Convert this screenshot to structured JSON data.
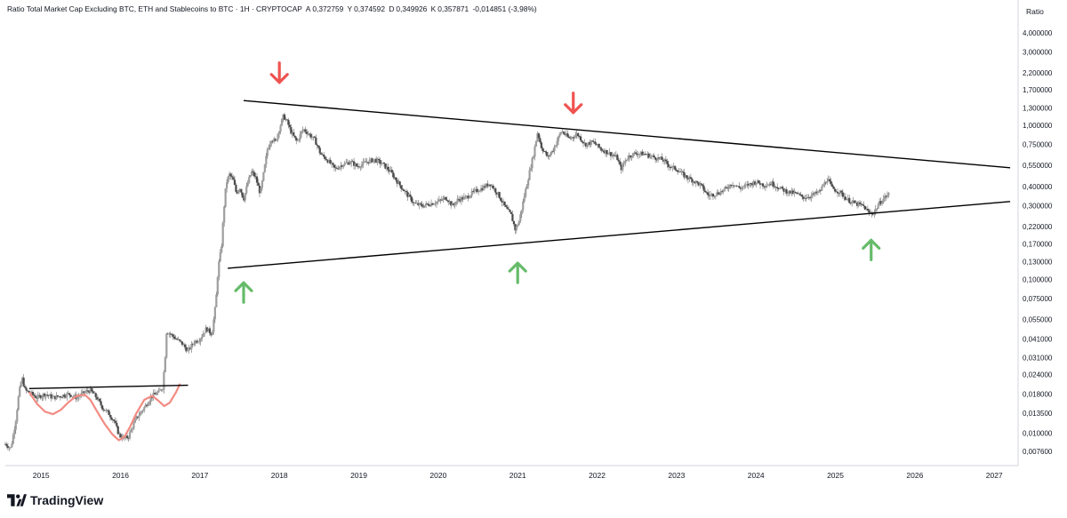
{
  "header": {
    "title": "Ratio Total Market Cap Excluding BTC, ETH and Stablecoins to BTC · 1H · CRYPTOCAP",
    "open_label": "A",
    "open": "0,372759",
    "high_label": "Y",
    "high": "0,374592",
    "low_label": "D",
    "low": "0,349926",
    "close_label": "K",
    "close": "0,357871",
    "change": "-0,014851 (-3,98%)"
  },
  "scale_label": "Ratio",
  "branding": {
    "text": "TradingView",
    "icon": "tradingview-logo"
  },
  "colors": {
    "up": "#26a69a",
    "down": "#ef5350",
    "candle": "#555555",
    "trendline": "#000000",
    "arrow_down": "#ef5350",
    "arrow_up": "#66bb6a",
    "pattern_curve": "#f28b82"
  },
  "chart_data": {
    "type": "candlestick",
    "title": "Ratio Total Market Cap Excluding BTC, ETH and Stablecoins to BTC",
    "y_scale": "log",
    "ylim": [
      0.0065,
      5.0
    ],
    "xlim": [
      2014.55,
      2027.3
    ],
    "y_ticks": [
      "4,000000",
      "3,000000",
      "2,200000",
      "1,700000",
      "1,300000",
      "1,000000",
      "0,750000",
      "0,550000",
      "0,400000",
      "0,300000",
      "0,220000",
      "0,170000",
      "0,130000",
      "0,100000",
      "0,075000",
      "0,055000",
      "0,041000",
      "0,031000",
      "0,024000",
      "0,018000",
      "0,013500",
      "0,010000",
      "0,007600"
    ],
    "x_ticks": [
      "2015",
      "2016",
      "2017",
      "2018",
      "2019",
      "2020",
      "2021",
      "2022",
      "2023",
      "2024",
      "2025",
      "2026",
      "2027"
    ],
    "series": [
      {
        "kind": "price_path",
        "points": [
          [
            2014.55,
            0.0085
          ],
          [
            2014.62,
            0.008
          ],
          [
            2014.68,
            0.012
          ],
          [
            2014.72,
            0.018
          ],
          [
            2014.76,
            0.023
          ],
          [
            2014.8,
            0.019
          ],
          [
            2014.88,
            0.018
          ],
          [
            2014.95,
            0.017
          ],
          [
            2015.05,
            0.018
          ],
          [
            2015.15,
            0.017
          ],
          [
            2015.25,
            0.0175
          ],
          [
            2015.35,
            0.018
          ],
          [
            2015.45,
            0.017
          ],
          [
            2015.55,
            0.0185
          ],
          [
            2015.62,
            0.019
          ],
          [
            2015.7,
            0.017
          ],
          [
            2015.78,
            0.0145
          ],
          [
            2015.85,
            0.0135
          ],
          [
            2015.92,
            0.012
          ],
          [
            2015.98,
            0.0098
          ],
          [
            2016.04,
            0.0092
          ],
          [
            2016.1,
            0.0095
          ],
          [
            2016.15,
            0.011
          ],
          [
            2016.2,
            0.0125
          ],
          [
            2016.27,
            0.014
          ],
          [
            2016.33,
            0.0155
          ],
          [
            2016.4,
            0.0175
          ],
          [
            2016.48,
            0.0185
          ],
          [
            2016.53,
            0.0198
          ],
          [
            2016.56,
            0.03
          ],
          [
            2016.58,
            0.046
          ],
          [
            2016.63,
            0.044
          ],
          [
            2016.7,
            0.041
          ],
          [
            2016.78,
            0.038
          ],
          [
            2016.85,
            0.034
          ],
          [
            2016.92,
            0.039
          ],
          [
            2017.0,
            0.041
          ],
          [
            2017.08,
            0.048
          ],
          [
            2017.15,
            0.044
          ],
          [
            2017.2,
            0.07
          ],
          [
            2017.23,
            0.12
          ],
          [
            2017.27,
            0.16
          ],
          [
            2017.3,
            0.28
          ],
          [
            2017.33,
            0.42
          ],
          [
            2017.37,
            0.48
          ],
          [
            2017.42,
            0.44
          ],
          [
            2017.46,
            0.36
          ],
          [
            2017.5,
            0.4
          ],
          [
            2017.55,
            0.33
          ],
          [
            2017.6,
            0.42
          ],
          [
            2017.65,
            0.5
          ],
          [
            2017.7,
            0.46
          ],
          [
            2017.76,
            0.36
          ],
          [
            2017.8,
            0.48
          ],
          [
            2017.85,
            0.7
          ],
          [
            2017.9,
            0.82
          ],
          [
            2017.95,
            0.78
          ],
          [
            2018.0,
            0.95
          ],
          [
            2018.05,
            1.15
          ],
          [
            2018.1,
            1.05
          ],
          [
            2018.15,
            0.9
          ],
          [
            2018.22,
            0.78
          ],
          [
            2018.3,
            0.95
          ],
          [
            2018.37,
            0.88
          ],
          [
            2018.45,
            0.8
          ],
          [
            2018.52,
            0.65
          ],
          [
            2018.6,
            0.6
          ],
          [
            2018.7,
            0.52
          ],
          [
            2018.8,
            0.56
          ],
          [
            2018.9,
            0.58
          ],
          [
            2018.98,
            0.54
          ],
          [
            2019.1,
            0.58
          ],
          [
            2019.2,
            0.6
          ],
          [
            2019.3,
            0.56
          ],
          [
            2019.4,
            0.5
          ],
          [
            2019.5,
            0.42
          ],
          [
            2019.6,
            0.36
          ],
          [
            2019.7,
            0.31
          ],
          [
            2019.8,
            0.3
          ],
          [
            2019.9,
            0.31
          ],
          [
            2020.0,
            0.32
          ],
          [
            2020.1,
            0.34
          ],
          [
            2020.18,
            0.3
          ],
          [
            2020.25,
            0.33
          ],
          [
            2020.35,
            0.34
          ],
          [
            2020.45,
            0.37
          ],
          [
            2020.55,
            0.39
          ],
          [
            2020.65,
            0.42
          ],
          [
            2020.75,
            0.36
          ],
          [
            2020.85,
            0.29
          ],
          [
            2020.92,
            0.26
          ],
          [
            2020.97,
            0.21
          ],
          [
            2021.02,
            0.24
          ],
          [
            2021.08,
            0.34
          ],
          [
            2021.15,
            0.5
          ],
          [
            2021.2,
            0.65
          ],
          [
            2021.25,
            0.9
          ],
          [
            2021.3,
            0.72
          ],
          [
            2021.38,
            0.62
          ],
          [
            2021.45,
            0.7
          ],
          [
            2021.55,
            0.92
          ],
          [
            2021.65,
            0.82
          ],
          [
            2021.75,
            0.88
          ],
          [
            2021.85,
            0.75
          ],
          [
            2021.95,
            0.78
          ],
          [
            2022.05,
            0.7
          ],
          [
            2022.15,
            0.66
          ],
          [
            2022.25,
            0.62
          ],
          [
            2022.3,
            0.52
          ],
          [
            2022.38,
            0.62
          ],
          [
            2022.48,
            0.66
          ],
          [
            2022.6,
            0.65
          ],
          [
            2022.72,
            0.62
          ],
          [
            2022.82,
            0.6
          ],
          [
            2022.92,
            0.54
          ],
          [
            2023.0,
            0.52
          ],
          [
            2023.1,
            0.47
          ],
          [
            2023.2,
            0.44
          ],
          [
            2023.3,
            0.41
          ],
          [
            2023.4,
            0.35
          ],
          [
            2023.5,
            0.36
          ],
          [
            2023.6,
            0.38
          ],
          [
            2023.7,
            0.42
          ],
          [
            2023.8,
            0.39
          ],
          [
            2023.9,
            0.41
          ],
          [
            2024.0,
            0.43
          ],
          [
            2024.1,
            0.41
          ],
          [
            2024.2,
            0.42
          ],
          [
            2024.3,
            0.39
          ],
          [
            2024.4,
            0.37
          ],
          [
            2024.5,
            0.36
          ],
          [
            2024.6,
            0.34
          ],
          [
            2024.7,
            0.35
          ],
          [
            2024.8,
            0.37
          ],
          [
            2024.9,
            0.45
          ],
          [
            2024.96,
            0.39
          ],
          [
            2025.05,
            0.37
          ],
          [
            2025.15,
            0.33
          ],
          [
            2025.25,
            0.31
          ],
          [
            2025.35,
            0.3
          ],
          [
            2025.42,
            0.27
          ],
          [
            2025.48,
            0.27
          ],
          [
            2025.55,
            0.31
          ],
          [
            2025.62,
            0.34
          ],
          [
            2025.68,
            0.36
          ]
        ]
      }
    ],
    "annotations": [
      {
        "type": "trendline",
        "from": [
          2017.55,
          1.45
        ],
        "to": [
          2027.2,
          0.53
        ]
      },
      {
        "type": "trendline",
        "from": [
          2017.35,
          0.118
        ],
        "to": [
          2027.2,
          0.32
        ]
      },
      {
        "type": "trendline",
        "from": [
          2014.85,
          0.0195
        ],
        "to": [
          2016.85,
          0.0205
        ]
      },
      {
        "type": "arrow",
        "direction": "down",
        "at": [
          2018.0,
          2.2
        ]
      },
      {
        "type": "arrow",
        "direction": "down",
        "at": [
          2021.7,
          1.4
        ]
      },
      {
        "type": "arrow",
        "direction": "up",
        "at": [
          2017.55,
          0.082
        ]
      },
      {
        "type": "arrow",
        "direction": "up",
        "at": [
          2021.0,
          0.11
        ]
      },
      {
        "type": "arrow",
        "direction": "up",
        "at": [
          2025.45,
          0.155
        ]
      }
    ]
  }
}
